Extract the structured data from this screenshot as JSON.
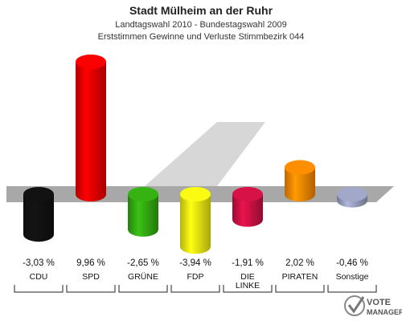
{
  "header": {
    "title": "Stadt Mülheim an der Ruhr",
    "subtitle1": "Landtagswahl 2010 - Bundestagswahl 2009",
    "subtitle2": "Erststimmen Gewinne und Verluste Stimmbezirk 044"
  },
  "logo": {
    "line1": "VOTE",
    "line2": "MANAGER"
  },
  "chart_data": {
    "type": "bar",
    "categories": [
      "CDU",
      "SPD",
      "GRÜNE",
      "FDP",
      "DIE LINKE",
      "PIRATEN",
      "Sonstige"
    ],
    "category_lines": [
      [
        "CDU"
      ],
      [
        "SPD"
      ],
      [
        "GRÜNE"
      ],
      [
        "FDP"
      ],
      [
        "DIE",
        "LINKE"
      ],
      [
        "PIRATEN"
      ],
      [
        "Sonstige"
      ]
    ],
    "values": [
      -3.03,
      9.96,
      -2.65,
      -3.94,
      -1.91,
      2.02,
      -0.46
    ],
    "value_labels": [
      "-3,03 %",
      "9,96 %",
      "-2,65 %",
      "-3,94 %",
      "-1,91 %",
      "2,02 %",
      "-0,46 %"
    ],
    "colors": [
      "#111111",
      "#ee0000",
      "#33aa11",
      "#eeee11",
      "#cc1144",
      "#ff8800",
      "#99a0c0"
    ],
    "ylim": [
      -4,
      10
    ],
    "grid": false,
    "legend": "none"
  }
}
